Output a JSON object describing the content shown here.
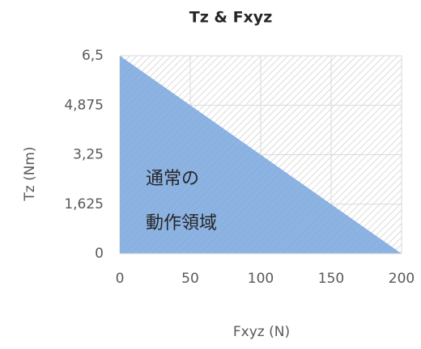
{
  "chart_data": {
    "type": "area",
    "title": "Tz & Fxyz",
    "x_label": "Fxyz (N)",
    "y_label": "Tz (Nm)",
    "x": [
      0,
      50,
      100,
      150,
      200
    ],
    "values": [
      6.5,
      4.875,
      3.25,
      1.625,
      0
    ],
    "color": "#8db3e2",
    "hatch_color": "#c8c8c8",
    "xlim": [
      0,
      200
    ],
    "xticks": [
      0,
      50,
      100,
      150,
      200
    ],
    "ylim": [
      0,
      6.5
    ],
    "yticks": [
      0,
      {
        "value": 1.625,
        "label": "1,625"
      },
      {
        "value": 3.25,
        "label": "3,25"
      },
      {
        "value": 4.875,
        "label": "4,875"
      },
      {
        "value": 6.5,
        "label": "6,5"
      }
    ],
    "grid": true,
    "annotations": [
      "通常の",
      "動作領域"
    ]
  }
}
